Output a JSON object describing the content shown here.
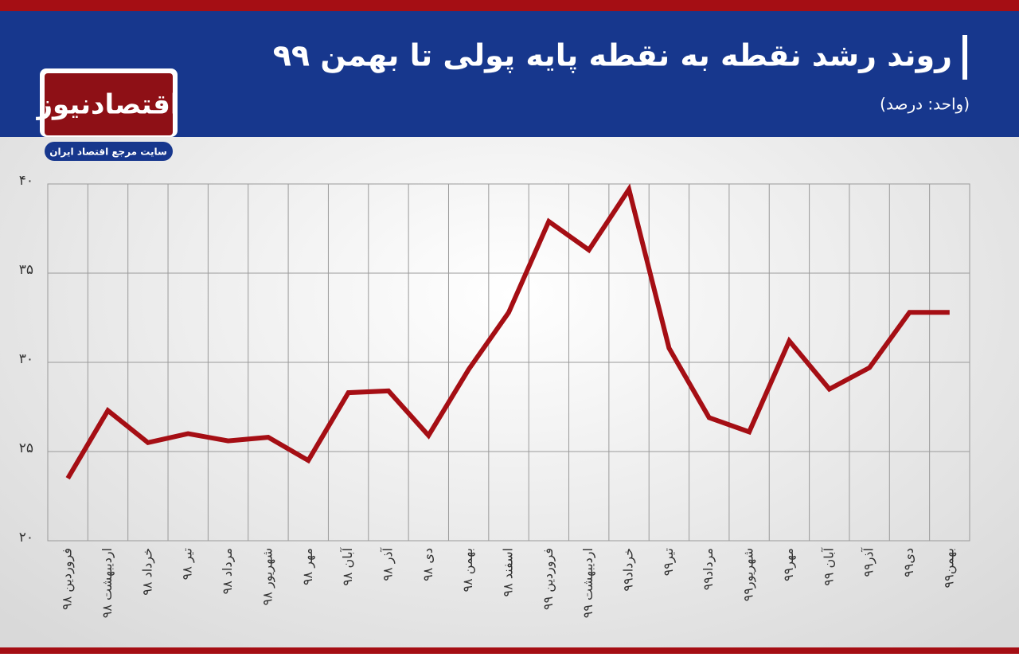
{
  "logo": {
    "name": "اقتصادنیوز",
    "tagline": "سایت مرجع اقتصاد ایران"
  },
  "chart_data": {
    "type": "line",
    "title": "روند رشد نقطه به نقطه پایه پولی تا بهمن ۹۹",
    "subtitle": "(واحد: درصد)",
    "categories": [
      "فروردین ۹۸",
      "اردیبهشت ۹۸",
      "خرداد ۹۸",
      "تیر ۹۸",
      "مرداد ۹۸",
      "شهریور ۹۸",
      "مهر ۹۸",
      "آبان ۹۸",
      "آذر ۹۸",
      "دی ۹۸",
      "بهمن ۹۸",
      "اسفند ۹۸",
      "فروردین ۹۹",
      "اردیبهشت ۹۹",
      "خرداد۹۹",
      "تیر۹۹",
      "مرداد۹۹",
      "شهریور۹۹",
      "مهر۹۹",
      "آبان ۹۹",
      "آذر۹۹",
      "دی۹۹",
      "بهمن۹۹"
    ],
    "values": [
      23.5,
      27.3,
      25.5,
      26.0,
      25.6,
      25.8,
      24.5,
      28.3,
      28.4,
      25.9,
      29.6,
      32.8,
      37.9,
      36.3,
      39.7,
      30.8,
      26.9,
      26.1,
      31.2,
      28.5,
      29.7,
      32.8,
      32.8
    ],
    "color": "#a50e14",
    "ylim": [
      20,
      40
    ],
    "yticks": [
      {
        "value": 20,
        "label": "۲۰"
      },
      {
        "value": 25,
        "label": "۲۵"
      },
      {
        "value": 30,
        "label": "۳۰"
      },
      {
        "value": 35,
        "label": "۳۵"
      },
      {
        "value": 40,
        "label": "۴۰"
      }
    ],
    "grid": true
  }
}
